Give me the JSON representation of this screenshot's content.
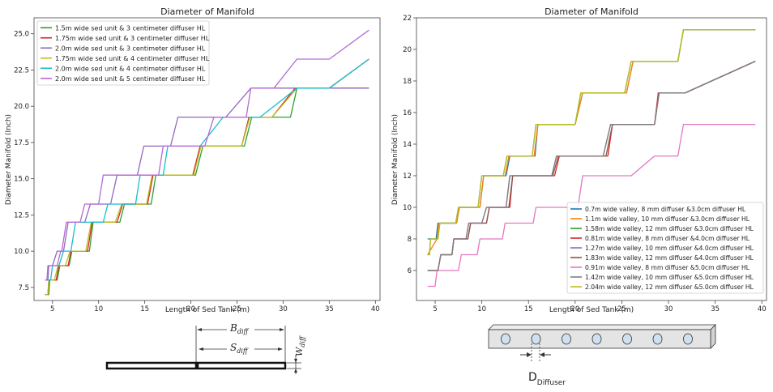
{
  "chart_data": [
    {
      "type": "line",
      "title": "Diameter of Manifold",
      "xlabel": "Length of Sed Tank (m)",
      "ylabel": "Diameter Manifold (Inch)",
      "xlim": [
        3,
        40.5
      ],
      "ylim": [
        6.6,
        26.1
      ],
      "xticks": [
        5,
        10,
        15,
        20,
        25,
        30,
        35,
        40
      ],
      "yticks": [
        7.5,
        10.0,
        12.5,
        15.0,
        17.5,
        20.0,
        22.5,
        25.0
      ],
      "ytick_labels": [
        "7.5",
        "10.0",
        "12.5",
        "15.0",
        "17.5",
        "20.0",
        "22.5",
        "25.0"
      ],
      "legend": "top-left",
      "series": [
        {
          "name": "1.5m wide sed unit & 3 centimeter diffuser HL",
          "color": "#2ca02c",
          "x": [
            4.2,
            4.6,
            4.7,
            5.5,
            5.8,
            6.8,
            7.1,
            9.0,
            9.4,
            12.3,
            12.8,
            15.7,
            16.2,
            20.5,
            21.3,
            25.8,
            26.6,
            30.8,
            31.5,
            34.5,
            39.3
          ],
          "y": [
            7,
            7,
            8,
            8,
            9,
            9,
            10,
            10,
            12,
            12,
            13.25,
            13.25,
            15.25,
            15.25,
            17.25,
            17.25,
            19.25,
            19.25,
            21.25,
            21.25,
            21.25
          ]
        },
        {
          "name": "1.75m wide sed unit & 3 centimeter diffuser HL",
          "color": "#d62728",
          "x": [
            4.3,
            4.5,
            4.6,
            5.4,
            5.7,
            6.7,
            7.0,
            8.8,
            9.3,
            12.0,
            12.6,
            15.3,
            15.9,
            20.2,
            21.0,
            25.5,
            26.3,
            28.8,
            31.3,
            35.0,
            39.3
          ],
          "y": [
            7,
            7,
            8,
            8,
            9,
            9,
            10,
            10,
            12,
            12,
            13.25,
            13.25,
            15.25,
            15.25,
            17.25,
            17.25,
            19.25,
            19.25,
            21.25,
            21.25,
            23.25
          ]
        },
        {
          "name": "2.0m wide sed unit & 3 centimeter diffuser HL",
          "color": "#9467bd",
          "x": [
            4.2,
            4.5,
            4.6,
            5.0,
            5.5,
            6.2,
            6.7,
            8.5,
            9.1,
            11.3,
            12.0,
            14.2,
            14.9,
            17.8,
            18.6,
            22.8,
            23.8,
            26.5,
            28.2,
            31.0,
            39.3
          ],
          "y": [
            8,
            8,
            9,
            9,
            10,
            10,
            12,
            12,
            13.25,
            13.25,
            15.25,
            15.25,
            17.25,
            17.25,
            19.25,
            19.25,
            19.25,
            21.25,
            21.25,
            21.25,
            21.25
          ]
        },
        {
          "name": "1.75m wide sed unit & 4 centimeter diffuser HL",
          "color": "#bcbd22",
          "x": [
            4.3,
            4.5,
            4.6,
            5.2,
            5.6,
            6.4,
            6.9,
            8.6,
            9.2,
            11.8,
            12.5,
            15.2,
            15.8,
            20.3,
            21.1,
            25.5,
            26.4,
            28.8,
            31.5,
            35.0,
            39.3
          ],
          "y": [
            7,
            7,
            8,
            8,
            9,
            9,
            10,
            10,
            12,
            12,
            13.25,
            13.25,
            15.25,
            15.25,
            17.25,
            17.25,
            19.25,
            19.25,
            21.25,
            21.25,
            23.25
          ]
        },
        {
          "name": "2.0m wide sed unit & 4 centimeter diffuser HL",
          "color": "#17becf",
          "x": [
            4.2,
            4.8,
            5.0,
            5.7,
            6.2,
            7.0,
            7.5,
            10.5,
            11.0,
            14.0,
            14.5,
            17.0,
            17.5,
            21.0,
            23.5,
            27.5,
            31.5,
            35.0,
            39.3
          ],
          "y": [
            8,
            8,
            9,
            9,
            10,
            10,
            12,
            12,
            13.25,
            13.25,
            15.25,
            15.25,
            17.25,
            17.25,
            19.25,
            19.25,
            21.25,
            21.25,
            23.25
          ]
        },
        {
          "name": "2.0m wide sed unit & 5 centimeter diffuser HL",
          "color": "#b36ad6",
          "x": [
            4.2,
            4.4,
            4.5,
            5.5,
            5.9,
            6.0,
            6.5,
            8.0,
            8.5,
            10.0,
            10.5,
            12.5,
            13.0,
            16.5,
            17.0,
            21.5,
            22.5,
            26.0,
            26.5,
            29.0,
            31.5,
            35.0,
            39.3
          ],
          "y": [
            8,
            8,
            9,
            9,
            10,
            10,
            12,
            12,
            13.25,
            13.25,
            15.25,
            15.25,
            15.25,
            15.25,
            17.25,
            17.25,
            19.25,
            19.25,
            21.25,
            21.25,
            23.25,
            23.25,
            25.25
          ]
        }
      ]
    },
    {
      "type": "line",
      "title": "Diameter of Manifold",
      "xlabel": "Length of Sed Tank (m)",
      "ylabel": "Diameter Manifold (Inch)",
      "xlim": [
        3,
        40.5
      ],
      "ylim": [
        4.1,
        22
      ],
      "xticks": [
        5,
        10,
        15,
        20,
        25,
        30,
        35,
        40
      ],
      "yticks": [
        6,
        8,
        10,
        12,
        14,
        16,
        18,
        20,
        22
      ],
      "ytick_labels": [
        "6",
        "8",
        "10",
        "12",
        "14",
        "16",
        "18",
        "20",
        "22"
      ],
      "legend": "bottom-right",
      "series": [
        {
          "name": "0.7m wide valley, 8 mm diffuser &3.0cm diffuser HL",
          "color": "#1f77b4",
          "x": [
            4.2,
            5.1,
            5.3,
            7.3,
            7.6,
            9.8,
            10.2,
            12.6,
            13.0,
            15.7,
            16.0,
            20.0,
            20.8,
            25.5,
            26.2,
            31.0,
            31.6,
            35.0,
            39.3
          ],
          "y": [
            8,
            8,
            9,
            9,
            10,
            10,
            12,
            12,
            13.25,
            13.25,
            15.25,
            15.25,
            17.25,
            17.25,
            19.25,
            19.25,
            21.25,
            21.25,
            21.25
          ]
        },
        {
          "name": "1.1m wide valley, 10 mm diffuser &3.0cm diffuser HL",
          "color": "#ff7f0e",
          "x": [
            4.2,
            5.2,
            5.4,
            7.3,
            7.6,
            9.8,
            10.2,
            12.5,
            12.9,
            15.6,
            16.0,
            20.0,
            20.8,
            25.5,
            26.2,
            31.0,
            31.6,
            35.0,
            39.3
          ],
          "y": [
            7,
            8,
            9,
            9,
            10,
            10,
            12,
            12,
            13.25,
            13.25,
            15.25,
            15.25,
            17.25,
            17.25,
            19.25,
            19.25,
            21.25,
            21.25,
            21.25
          ]
        },
        {
          "name": "1.58m wide valley, 12 mm diffuser &3.0cm diffuser HL",
          "color": "#2ca02c",
          "x": [
            4.2,
            4.4,
            4.5,
            5.3,
            5.5,
            7.2,
            7.5,
            9.6,
            10.0,
            12.3,
            12.7,
            15.4,
            15.8,
            20.0,
            20.6,
            25.3,
            26.0,
            31.0,
            31.6,
            35.0,
            39.3
          ],
          "y": [
            7,
            7,
            8,
            8,
            9,
            9,
            10,
            10,
            12,
            12,
            13.25,
            13.25,
            15.25,
            15.25,
            17.25,
            17.25,
            19.25,
            19.25,
            21.25,
            21.25,
            21.25
          ]
        },
        {
          "name": "0.81m wide valley, 8 mm diffuser &4.0cm diffuser HL",
          "color": "#d62728",
          "x": [
            4.2,
            5.3,
            5.6,
            6.8,
            7.0,
            8.5,
            8.8,
            10.5,
            10.8,
            13.0,
            13.3,
            17.8,
            18.3,
            23.5,
            24.0,
            28.5,
            28.9,
            31.8,
            39.3
          ],
          "y": [
            6,
            6,
            7,
            7,
            8,
            8,
            9,
            9,
            10,
            10,
            12,
            12,
            13.25,
            13.25,
            15.25,
            15.25,
            17.25,
            17.25,
            19.25
          ]
        },
        {
          "name": "1.27m wide valley, 10 mm diffuser &4.0cm diffuser HL",
          "color": "#9467bd",
          "x": [
            4.2,
            5.3,
            5.6,
            6.8,
            7.0,
            8.3,
            8.6,
            10.0,
            10.5,
            12.6,
            13.0,
            17.5,
            18.0,
            23.0,
            23.8,
            28.5,
            29.0,
            31.8,
            39.3
          ],
          "y": [
            6,
            6,
            7,
            7,
            8,
            8,
            9,
            9,
            10,
            10,
            12,
            12,
            13.25,
            13.25,
            15.25,
            15.25,
            17.25,
            17.25,
            19.25
          ]
        },
        {
          "name": "1.83m wide valley, 12 mm diffuser &4.0cm diffuser HL",
          "color": "#8c564b",
          "x": [
            4.2,
            5.3,
            5.6,
            6.8,
            7.0,
            8.5,
            8.8,
            10.5,
            10.8,
            12.9,
            13.3,
            17.6,
            18.2,
            23.3,
            24.0,
            28.5,
            29.0,
            31.8,
            39.3
          ],
          "y": [
            6,
            6,
            7,
            7,
            8,
            8,
            9,
            9,
            10,
            10,
            12,
            12,
            13.25,
            13.25,
            15.25,
            15.25,
            17.25,
            17.25,
            19.25
          ]
        },
        {
          "name": "0.91m wide valley, 8 mm diffuser &5.0cm diffuser HL",
          "color": "#e377c2",
          "x": [
            4.2,
            5.0,
            5.2,
            7.5,
            7.8,
            9.5,
            9.8,
            12.2,
            12.5,
            15.5,
            15.8,
            18.5,
            18.8,
            20.3,
            20.8,
            26.0,
            28.5,
            31.0,
            31.6,
            34.8,
            39.3
          ],
          "y": [
            5,
            5,
            6,
            6,
            7,
            7,
            8,
            8,
            9,
            9,
            10,
            10,
            10,
            10,
            12,
            12,
            13.25,
            13.25,
            15.25,
            15.25,
            15.25
          ]
        },
        {
          "name": "1.42m wide valley, 10 mm diffuser &5.0cm diffuser HL",
          "color": "#7f7f7f",
          "x": [
            4.2,
            5.3,
            5.6,
            6.8,
            7.0,
            8.3,
            8.6,
            10.0,
            10.5,
            12.6,
            13.0,
            17.5,
            18.0,
            23.0,
            23.8,
            28.5,
            29.0,
            31.8,
            39.3
          ],
          "y": [
            6,
            6,
            7,
            7,
            8,
            8,
            9,
            9,
            10,
            10,
            12,
            12,
            13.25,
            13.25,
            15.25,
            15.25,
            17.25,
            17.25,
            19.25
          ]
        },
        {
          "name": "2.04m wide valley, 12 mm diffuser &5.0cm diffuser HL",
          "color": "#bcbd22",
          "x": [
            4.2,
            4.4,
            4.5,
            5.3,
            5.5,
            7.2,
            7.5,
            9.6,
            10.0,
            12.3,
            12.7,
            15.4,
            15.8,
            20.0,
            20.6,
            25.3,
            26.0,
            31.0,
            31.6,
            35.0,
            39.3
          ],
          "y": [
            7,
            7,
            8,
            8,
            9,
            9,
            10,
            10,
            12,
            12,
            13.25,
            13.25,
            15.25,
            15.25,
            17.25,
            17.25,
            19.25,
            19.25,
            21.25,
            21.25,
            21.25
          ]
        }
      ]
    }
  ],
  "diagram_left": {
    "b_label": "B",
    "b_sub": "diff",
    "s_label": "S",
    "s_sub": "diff",
    "w_label": "W",
    "w_sub": "diff"
  },
  "diagram_right": {
    "label": "D",
    "label_sub": "Diffuser",
    "hole_count": 7
  }
}
